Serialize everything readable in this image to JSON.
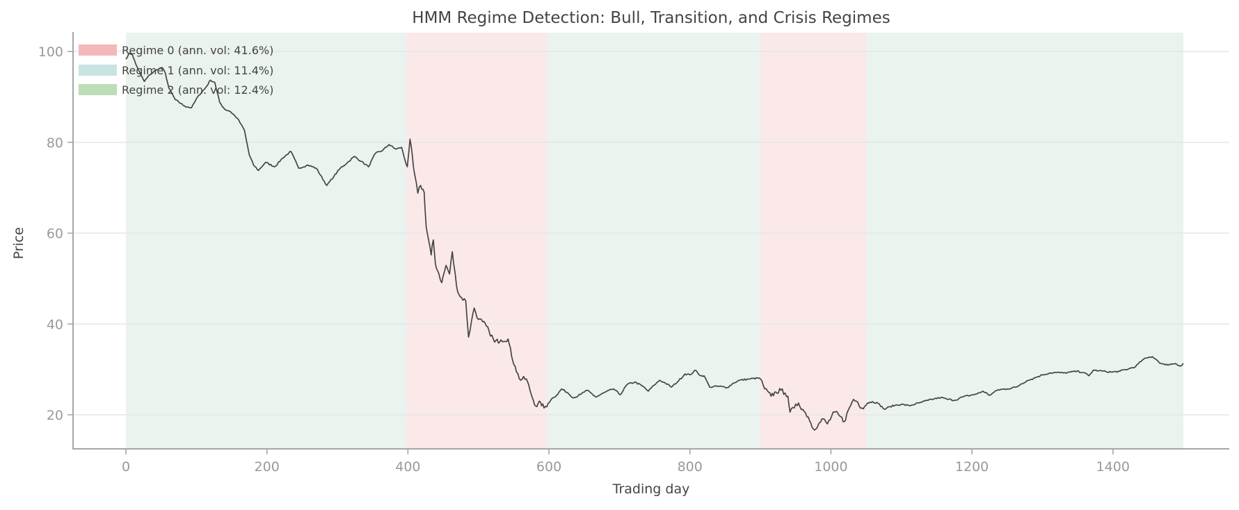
{
  "chart_data": {
    "type": "line",
    "title": "HMM Regime Detection: Bull, Transition, and Crisis Regimes",
    "xlabel": "Trading day",
    "ylabel": "Price",
    "xlim": [
      -75,
      1565
    ],
    "ylim": [
      12.5,
      104.3
    ],
    "xticks": [
      0,
      200,
      400,
      600,
      800,
      1000,
      1200,
      1400
    ],
    "yticks": [
      20,
      40,
      60,
      80,
      100
    ],
    "grid": "y-only",
    "legend_position": "upper left",
    "legend": [
      {
        "label": "Regime 0 (ann. vol: 41.6%)",
        "color": "#f4b8b8"
      },
      {
        "label": "Regime 1 (ann. vol: 11.4%)",
        "color": "#c9e3e1"
      },
      {
        "label": "Regime 2 (ann. vol: 12.4%)",
        "color": "#bddcb8"
      }
    ],
    "regime_bands": [
      {
        "regime": 2,
        "start": 0,
        "end": 398,
        "color": "#eaf3ee"
      },
      {
        "regime": 0,
        "start": 398,
        "end": 597,
        "color": "#fbe9e9"
      },
      {
        "regime": 2,
        "start": 597,
        "end": 900,
        "color": "#eaf3ee"
      },
      {
        "regime": 0,
        "start": 900,
        "end": 1050,
        "color": "#fbe9e9"
      },
      {
        "regime": 2,
        "start": 1050,
        "end": 1500,
        "color": "#eaf3ee"
      }
    ],
    "series": [
      {
        "name": "Price",
        "color": "#444444",
        "x": [
          0,
          4,
          9,
          14,
          21,
          26,
          34,
          44,
          51,
          56,
          61,
          70,
          83,
          93,
          103,
          113,
          120,
          126,
          133,
          140,
          148,
          158,
          168,
          175,
          181,
          188,
          198,
          211,
          222,
          234,
          245,
          258,
          270,
          285,
          295,
          304,
          314,
          324,
          334,
          344,
          354,
          364,
          373,
          383,
          391,
          396,
          399,
          403,
          408,
          414,
          418,
          423,
          426,
          433,
          436,
          439,
          444,
          448,
          454,
          459,
          463,
          469,
          474,
          482,
          486,
          490,
          494,
          500,
          506,
          515,
          523,
          532,
          542,
          547,
          552,
          558,
          568,
          573,
          578,
          583,
          588,
          593,
          599,
          605,
          611,
          618,
          627,
          635,
          645,
          654,
          667,
          680,
          692,
          701,
          711,
          722,
          733,
          741,
          749,
          757,
          765,
          774,
          784,
          793,
          800,
          808,
          815,
          820,
          828,
          840,
          853,
          862,
          870,
          885,
          898,
          902,
          906,
          915,
          922,
          929,
          935,
          939,
          942,
          948,
          954,
          960,
          968,
          975,
          982,
          989,
          995,
          1005,
          1012,
          1019,
          1026,
          1032,
          1038,
          1044,
          1052,
          1059,
          1067,
          1076,
          1084,
          1091,
          1100,
          1111,
          1125,
          1138,
          1146,
          1156,
          1166,
          1176,
          1186,
          1198,
          1207,
          1216,
          1225,
          1237,
          1250,
          1263,
          1270,
          1278,
          1284,
          1290,
          1300,
          1310,
          1320,
          1330,
          1340,
          1349,
          1358,
          1366,
          1372,
          1380,
          1390,
          1399,
          1410,
          1422,
          1432,
          1442,
          1450,
          1456,
          1462,
          1468,
          1474,
          1480,
          1489,
          1496,
          1500
        ],
        "y": [
          98.3,
          99.5,
          99.4,
          97.2,
          94.9,
          93.4,
          94.9,
          96.0,
          96.5,
          95.2,
          91.9,
          89.4,
          88.0,
          87.6,
          90.3,
          92.0,
          93.7,
          93.2,
          88.8,
          87.3,
          86.8,
          85.3,
          82.7,
          77.2,
          75.0,
          73.8,
          75.6,
          74.6,
          76.5,
          78.0,
          74.3,
          75.0,
          74.3,
          70.5,
          72.5,
          74.3,
          75.5,
          76.9,
          75.8,
          74.6,
          77.6,
          78.2,
          79.5,
          78.5,
          78.9,
          76.0,
          74.6,
          80.7,
          74.3,
          68.8,
          70.5,
          69.0,
          61.3,
          55.2,
          58.5,
          53.2,
          51.0,
          49.1,
          52.9,
          51.0,
          55.9,
          48.3,
          46.0,
          45.1,
          37.1,
          40.5,
          43.5,
          41.0,
          40.5,
          38.5,
          36.0,
          36.5,
          36.7,
          33.0,
          30.7,
          27.9,
          27.9,
          25.5,
          23.1,
          21.8,
          22.8,
          21.5,
          22.5,
          23.7,
          24.3,
          25.7,
          24.8,
          23.7,
          24.5,
          25.4,
          23.9,
          25.0,
          25.7,
          24.4,
          26.7,
          27.2,
          26.3,
          25.2,
          26.5,
          27.6,
          27.0,
          26.1,
          27.5,
          29.0,
          28.8,
          29.8,
          28.6,
          28.6,
          26.1,
          26.3,
          26.0,
          27.0,
          27.6,
          27.9,
          28.1,
          27.5,
          25.7,
          24.1,
          25.0,
          25.4,
          24.8,
          24.1,
          20.6,
          21.5,
          22.6,
          21.2,
          19.5,
          16.9,
          17.8,
          19.1,
          18.0,
          20.6,
          19.8,
          18.5,
          21.5,
          23.4,
          22.8,
          21.5,
          22.6,
          22.9,
          22.5,
          21.2,
          21.8,
          22.1,
          22.3,
          22.0,
          22.6,
          23.2,
          23.5,
          23.8,
          23.4,
          23.2,
          23.9,
          24.3,
          24.6,
          25.2,
          24.3,
          25.5,
          25.7,
          26.1,
          26.8,
          27.5,
          27.8,
          28.2,
          28.8,
          29.2,
          29.3,
          29.2,
          29.4,
          29.6,
          29.3,
          28.6,
          29.8,
          29.7,
          29.5,
          29.4,
          29.6,
          30.1,
          30.6,
          32.1,
          32.6,
          32.8,
          32.1,
          31.3,
          31.0,
          31.1,
          31.3,
          30.7,
          31.3
        ]
      }
    ]
  },
  "ui": {
    "title": "HMM Regime Detection: Bull, Transition, and Crisis Regimes",
    "xlabel": "Trading day",
    "ylabel": "Price",
    "xtick_labels": [
      "0",
      "200",
      "400",
      "600",
      "800",
      "1000",
      "1200",
      "1400"
    ],
    "ytick_labels": [
      "20",
      "40",
      "60",
      "80",
      "100"
    ],
    "legend": [
      "Regime 0 (ann. vol: 41.6%)",
      "Regime 1 (ann. vol: 11.4%)",
      "Regime 2 (ann. vol: 12.4%)"
    ]
  }
}
